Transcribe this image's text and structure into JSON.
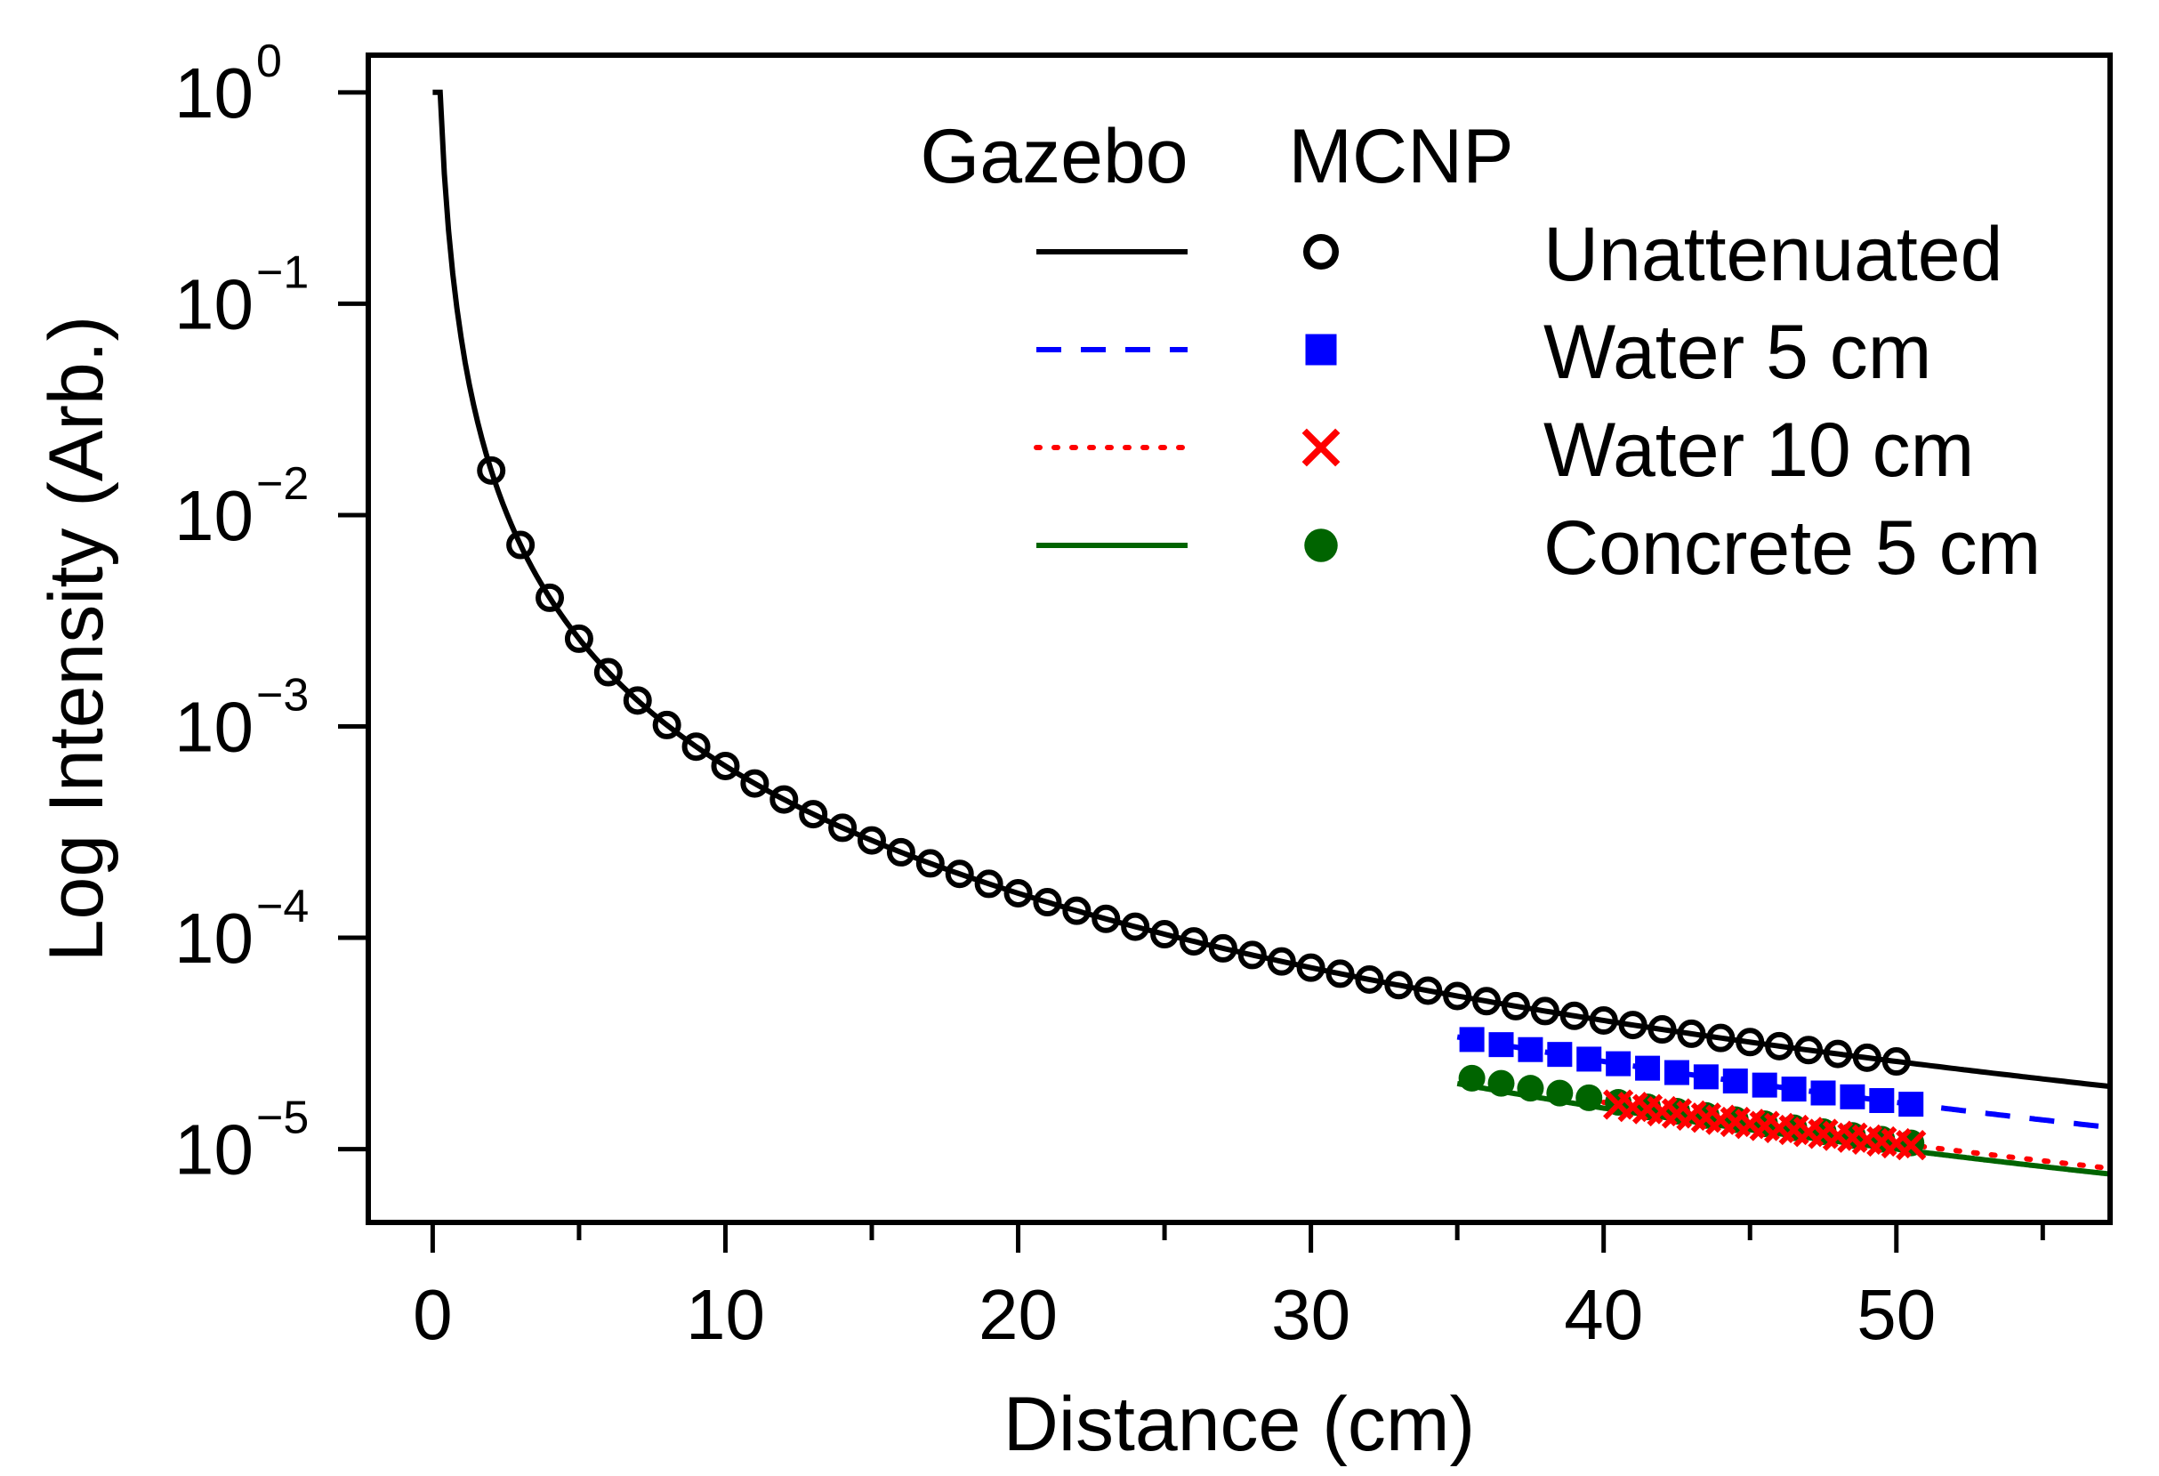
{
  "chart_data": {
    "type": "line",
    "xlabel": "Distance (cm)",
    "ylabel": "Log Intensity (Arb.)",
    "x_ticks": [
      0,
      10,
      20,
      30,
      40,
      50
    ],
    "x_tick_labels": [
      "0",
      "10",
      "20",
      "30",
      "40",
      "50"
    ],
    "xlim": [
      -2.2,
      57.3
    ],
    "y_scale": "log",
    "ylim": [
      4.5e-06,
      1.5
    ],
    "y_ticks": [
      1,
      0.1,
      0.01,
      0.001,
      0.0001,
      1e-05
    ],
    "y_tick_labels": [
      {
        "base": "10",
        "exp": "0"
      },
      {
        "base": "10",
        "exp": "−1"
      },
      {
        "base": "10",
        "exp": "−2"
      },
      {
        "base": "10",
        "exp": "−3"
      },
      {
        "base": "10",
        "exp": "−4"
      },
      {
        "base": "10",
        "exp": "−5"
      }
    ],
    "grid": false,
    "legend": {
      "placement": "top-right",
      "column_headers": [
        "Gazebo",
        "MCNP"
      ],
      "entries": [
        "Unattenuated",
        "Water 5 cm",
        "Water 10 cm",
        "Concrete 5 cm"
      ]
    },
    "series": [
      {
        "name": "Unattenuated",
        "color": "#000000",
        "line_style": "solid",
        "marker": "open-circle",
        "line": {
          "model": "inverse-square",
          "k": 0.065,
          "x_range": [
            0,
            57.3
          ]
        },
        "points": {
          "x_start": 2,
          "x_end": 50,
          "step": 1
        }
      },
      {
        "name": "Water 5 cm",
        "color": "#0000ff",
        "line_style": "dashed",
        "marker": "filled-square",
        "line": {
          "model": "inverse-square",
          "factor": 0.64,
          "x_range": [
            35,
            57.3
          ]
        },
        "points": {
          "x_start": 35.5,
          "x_end": 50.5,
          "step": 1,
          "factor": 0.64
        }
      },
      {
        "name": "Water 10 cm",
        "color": "#ff0000",
        "line_style": "dotted",
        "marker": "cross",
        "line": {
          "model": "inverse-square",
          "factor": 0.41,
          "x_range": [
            40,
            57.3
          ]
        },
        "points": {
          "x_start": 40.5,
          "x_end": 50.5,
          "step": 0.5,
          "factor": 0.41
        }
      },
      {
        "name": "Concrete 5 cm",
        "color": "#006400",
        "line_style": "solid",
        "marker": "filled-circle",
        "line": {
          "model": "inverse-square",
          "factor": 0.385,
          "x_range": [
            35,
            57.3
          ]
        },
        "points": {
          "x_start": 35.5,
          "x_end": 50.5,
          "step": 1,
          "factor": 0.42
        }
      }
    ]
  }
}
